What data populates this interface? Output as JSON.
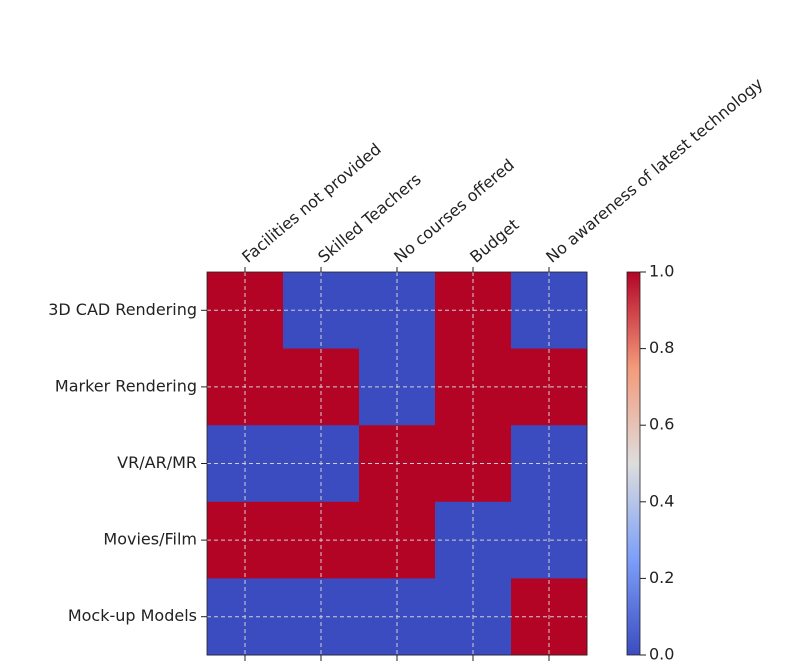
{
  "chart_data": {
    "type": "heatmap",
    "categories": [
      "Facilities not provided",
      "Skilled Teachers",
      "No courses offered",
      "Budget",
      "No awareness of latest technology"
    ],
    "rows": [
      "3D CAD Rendering",
      "Marker Rendering",
      "VR/AR/MR",
      "Movies/Film",
      "Mock-up Models"
    ],
    "values": [
      [
        1,
        0,
        0,
        1,
        0
      ],
      [
        1,
        1,
        0,
        1,
        1
      ],
      [
        0,
        0,
        1,
        1,
        0
      ],
      [
        1,
        1,
        1,
        0,
        0
      ],
      [
        0,
        0,
        0,
        0,
        1
      ]
    ],
    "colormap": "coolwarm",
    "clim": [
      0,
      1
    ],
    "cticks": [
      {
        "value": 0,
        "label": "0.0"
      },
      0.2,
      0.4,
      0.6,
      0.8,
      {
        "value": 1,
        "label": "1.0"
      }
    ],
    "grid": true
  }
}
